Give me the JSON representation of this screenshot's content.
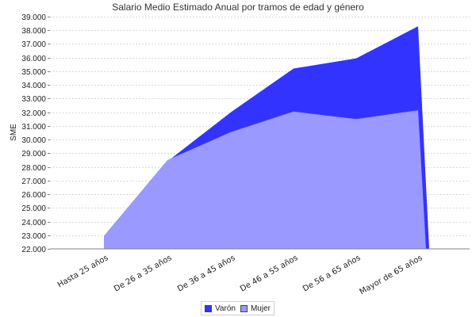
{
  "chart_data": {
    "type": "area",
    "title": "Salario Medio Estimado Anual por tramos de edad y género",
    "xlabel": "",
    "ylabel": "SME",
    "ylim": [
      22000,
      39000
    ],
    "yticks": [
      "22.000",
      "23.000",
      "24.000",
      "25.000",
      "26.000",
      "27.000",
      "28.000",
      "29.000",
      "30.000",
      "31.000",
      "32.000",
      "33.000",
      "34.000",
      "35.000",
      "36.000",
      "37.000",
      "38.000",
      "39.000"
    ],
    "categories": [
      "Hasta 25 años",
      "De 26 a 35 años",
      "De 36 a 45 años",
      "De 46 a 55 años",
      "De 56 a 65 años",
      "Mayor de 65 años"
    ],
    "series": [
      {
        "name": "Varón",
        "color": "#3333ff",
        "values": [
          22900,
          28400,
          32000,
          35200,
          35950,
          38300
        ]
      },
      {
        "name": "Mujer",
        "color": "#9999ff",
        "values": [
          22950,
          28500,
          30550,
          32050,
          31500,
          32150
        ]
      }
    ],
    "grid": true,
    "legend_position": "bottom"
  },
  "legend": {
    "items": [
      {
        "label": "Varón",
        "color": "#3333ff"
      },
      {
        "label": "Mujer",
        "color": "#9999ff"
      }
    ]
  }
}
